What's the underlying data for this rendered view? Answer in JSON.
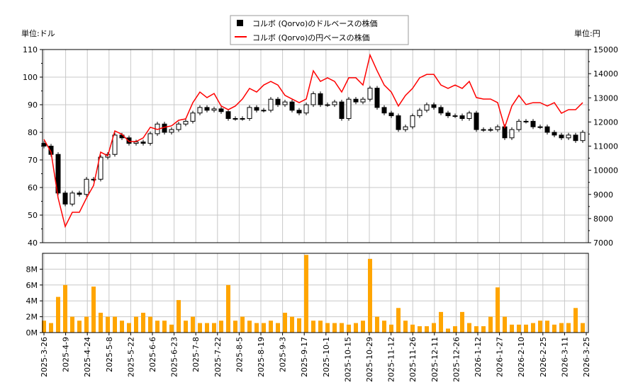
{
  "chart_data": {
    "type": "candlestick+line+bar",
    "legend": {
      "placement": "top-center",
      "items": [
        {
          "label": "コルボ (Qorvo)のドルベースの株価",
          "color": "#000000",
          "marker": "square"
        },
        {
          "label": "コルボ (Qorvo)の円ベースの株価",
          "color": "#ff0000",
          "marker": "line"
        }
      ]
    },
    "left_unit": "単位:ドル",
    "right_unit": "単位:円",
    "y_left": {
      "range": [
        40,
        110
      ],
      "ticks": [
        "40",
        "50",
        "60",
        "70",
        "80",
        "90",
        "100",
        "110"
      ]
    },
    "y_right": {
      "range": [
        7000,
        15000
      ],
      "ticks": [
        "7000",
        "8000",
        "9000",
        "10000",
        "11000",
        "12000",
        "13000",
        "14000",
        "15000"
      ]
    },
    "y_volume": {
      "range": [
        0,
        10
      ],
      "unit": "M",
      "ticks": [
        "0M",
        "2M",
        "4M",
        "6M",
        "8M"
      ]
    },
    "x_ticks": [
      "2025-3-26",
      "2025-4-9",
      "2025-4-24",
      "2025-5-8",
      "2025-5-22",
      "2025-6-6",
      "2025-6-23",
      "2025-7-8",
      "2025-7-22",
      "2025-8-5",
      "2025-8-19",
      "2025-9-3",
      "2025-9-17",
      "2025-10-1",
      "2025-10-15",
      "2025-10-29",
      "2025-11-12",
      "2025-11-26",
      "2025-12-11",
      "2025-12-26",
      "2026-1-12",
      "2026-1-27",
      "2026-2-10",
      "2026-2-25",
      "2026-3-11",
      "2026-3-25"
    ],
    "grid": true,
    "usd_close": [
      75,
      72,
      58,
      54,
      58,
      57.5,
      63,
      63,
      71,
      72,
      79,
      78,
      76,
      76.5,
      76,
      79.5,
      83,
      80,
      81,
      83,
      84,
      87,
      89,
      88,
      88.5,
      87.5,
      85,
      85,
      85,
      89,
      88,
      88,
      92,
      90,
      91,
      88,
      87,
      90,
      94,
      90,
      90,
      91,
      85,
      92,
      91,
      92,
      96,
      89,
      87,
      86,
      81,
      82,
      86,
      88,
      90,
      89,
      87,
      86,
      86,
      85,
      87,
      81,
      81,
      81,
      82,
      78,
      81,
      84,
      84,
      82,
      82,
      80,
      79,
      78,
      79,
      77,
      80
    ],
    "jpy_close": [
      11280,
      10750,
      8850,
      7670,
      8260,
      8260,
      8850,
      9370,
      10750,
      10600,
      11630,
      11490,
      11190,
      11190,
      11340,
      11780,
      11690,
      11780,
      11840,
      12070,
      12130,
      12800,
      13240,
      13010,
      13180,
      12660,
      12510,
      12660,
      12950,
      13390,
      13240,
      13530,
      13680,
      13530,
      13100,
      12950,
      12800,
      12950,
      14120,
      13680,
      13830,
      13680,
      13240,
      13830,
      13830,
      13530,
      14770,
      14120,
      13530,
      13240,
      12660,
      13100,
      13390,
      13830,
      13970,
      13970,
      13530,
      13390,
      13530,
      13390,
      13680,
      13010,
      12950,
      12950,
      12800,
      11780,
      12660,
      13100,
      12720,
      12800,
      12800,
      12660,
      12800,
      12360,
      12510,
      12510,
      12800
    ],
    "volume_m": [
      1.5,
      1.2,
      4.5,
      6.0,
      2.0,
      1.5,
      2.0,
      5.8,
      2.5,
      2.0,
      2.0,
      1.5,
      1.2,
      2.0,
      2.5,
      2.0,
      1.5,
      1.5,
      1.0,
      4.1,
      1.5,
      2.0,
      1.2,
      1.2,
      1.2,
      1.5,
      6.0,
      1.5,
      2.0,
      1.5,
      1.2,
      1.2,
      1.5,
      1.2,
      2.5,
      2.0,
      1.8,
      9.8,
      1.5,
      1.5,
      1.2,
      1.2,
      1.2,
      1.0,
      1.2,
      1.5,
      9.3,
      2.0,
      1.5,
      1.0,
      3.1,
      1.5,
      1.0,
      0.8,
      0.8,
      1.2,
      2.6,
      0.5,
      0.8,
      2.6,
      1.2,
      0.8,
      0.8,
      2.0,
      5.7,
      2.0,
      1.0,
      1.0,
      1.0,
      1.2,
      1.5,
      1.5,
      1.0,
      1.2,
      1.2,
      3.1,
      1.2
    ]
  }
}
